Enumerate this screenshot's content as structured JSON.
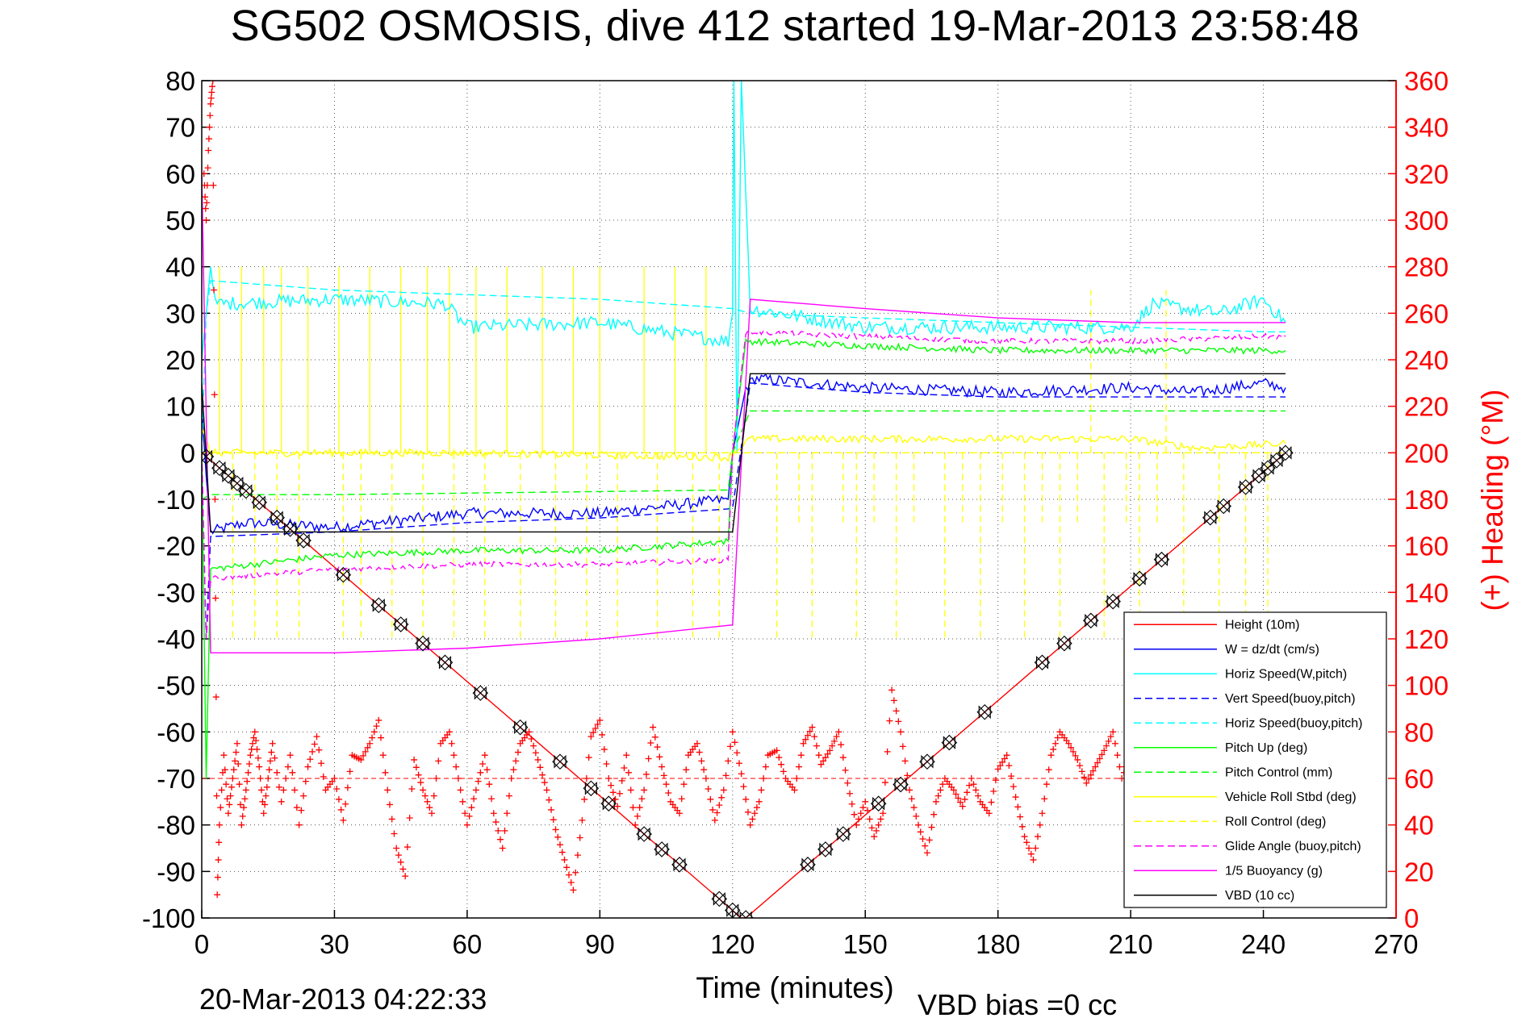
{
  "chart_data": {
    "type": "line",
    "title": "SG502 OSMOSIS, dive 412 started 19-Mar-2013 23:58:48",
    "xlabel": "Time (minutes)",
    "ylabel_right": "(+) Heading (°M)",
    "footer_left": "20-Mar-2013 04:22:33",
    "footer_center": "VBD bias =0 cc",
    "xlim": [
      0,
      270
    ],
    "ylim": [
      -100,
      80
    ],
    "ylim_right": [
      0,
      360
    ],
    "x_ticks": [
      "0",
      "30",
      "60",
      "90",
      "120",
      "150",
      "180",
      "210",
      "240",
      "270"
    ],
    "y_ticks": [
      "80",
      "70",
      "60",
      "50",
      "40",
      "30",
      "20",
      "10",
      "0",
      "-10",
      "-20",
      "-30",
      "-40",
      "-50",
      "-60",
      "-70",
      "-80",
      "-90",
      "-100"
    ],
    "y2_ticks": [
      "360",
      "340",
      "320",
      "300",
      "280",
      "260",
      "240",
      "220",
      "200",
      "180",
      "160",
      "140",
      "120",
      "100",
      "80",
      "60",
      "40",
      "20",
      "0"
    ],
    "grid": true,
    "legend_position": "bottom-right",
    "legend": [
      {
        "label": "Height (10m)",
        "color": "#ff0000",
        "style": "solid"
      },
      {
        "label": "W = dz/dt (cm/s)",
        "color": "#0000ff",
        "style": "solid"
      },
      {
        "label": "Horiz Speed(W,pitch)",
        "color": "#00ffff",
        "style": "solid"
      },
      {
        "label": "Vert Speed(buoy,pitch)",
        "color": "#0000ff",
        "style": "dashed"
      },
      {
        "label": "Horiz Speed(buoy,pitch)",
        "color": "#00ffff",
        "style": "dashed"
      },
      {
        "label": "Pitch Up (deg)",
        "color": "#00ff00",
        "style": "solid"
      },
      {
        "label": "Pitch Control (mm)",
        "color": "#00ff00",
        "style": "dashed"
      },
      {
        "label": "Vehicle Roll Stbd (deg)",
        "color": "#ffff00",
        "style": "solid"
      },
      {
        "label": "Roll Control (deg)",
        "color": "#ffff00",
        "style": "dashed"
      },
      {
        "label": "Glide Angle (buoy,pitch)",
        "color": "#ff00ff",
        "style": "dashed"
      },
      {
        "label": "1/5 Buoyancy (g)",
        "color": "#ff00ff",
        "style": "solid"
      },
      {
        "label": "VBD (10 cc)",
        "color": "#000000",
        "style": "solid"
      }
    ],
    "series": [
      {
        "name": "Height (10m)",
        "color": "#ff0000",
        "style": "solid",
        "x": [
          0,
          122,
          123,
          245
        ],
        "y": [
          0,
          -100,
          -100,
          0
        ]
      },
      {
        "name": "W = dz/dt (cm/s)",
        "color": "#0000ff",
        "style": "solid",
        "noise": 1.2,
        "x": [
          0,
          1,
          2,
          10,
          30,
          60,
          90,
          119,
          120,
          123,
          125,
          150,
          180,
          210,
          225,
          240,
          245
        ],
        "y": [
          10,
          -5,
          -17,
          -15,
          -16,
          -13,
          -13,
          -10,
          0,
          14,
          16,
          14,
          13,
          14,
          13,
          15,
          14
        ]
      },
      {
        "name": "Horiz Speed(W,pitch)",
        "color": "#00ffff",
        "style": "solid",
        "noise": 1.5,
        "x": [
          0,
          2,
          3,
          30,
          55,
          60,
          90,
          119,
          120,
          120.3,
          121,
          122,
          124,
          150,
          180,
          210,
          215,
          230,
          240,
          245
        ],
        "y": [
          20,
          40,
          32,
          33,
          32,
          27,
          28,
          24,
          30,
          80,
          0,
          80,
          31,
          27,
          27,
          27,
          32,
          30,
          33,
          28
        ]
      },
      {
        "name": "Vert Speed(buoy,pitch)",
        "color": "#0000ff",
        "style": "dashed",
        "x": [
          0,
          1,
          2,
          30,
          60,
          90,
          120,
          124,
          150,
          180,
          210,
          240,
          245
        ],
        "y": [
          0,
          -40,
          -18,
          -17,
          -15,
          -14,
          -12,
          15,
          13,
          12,
          12,
          12,
          12
        ]
      },
      {
        "name": "Horiz Speed(buoy,pitch)",
        "color": "#00ffff",
        "style": "dashed",
        "x": [
          0,
          1,
          2,
          30,
          60,
          90,
          120,
          124,
          150,
          180,
          210,
          240,
          245
        ],
        "y": [
          0,
          30,
          37,
          35,
          34,
          33,
          31,
          30,
          29,
          28,
          27,
          26,
          26
        ]
      },
      {
        "name": "Pitch Up (deg)",
        "color": "#00ff00",
        "style": "solid",
        "noise": 0.7,
        "x": [
          0,
          1,
          2,
          30,
          60,
          90,
          119,
          120,
          123,
          150,
          180,
          210,
          240,
          245
        ],
        "y": [
          0,
          -70,
          -25,
          -22,
          -21,
          -21,
          -19,
          0,
          24,
          23,
          22,
          22,
          22,
          22
        ]
      },
      {
        "name": "Pitch Control (mm)",
        "color": "#00ff00",
        "style": "dashed",
        "x": [
          0,
          2,
          30,
          119,
          120,
          124,
          210,
          245
        ],
        "y": [
          -10,
          -9,
          -9,
          -8,
          0,
          9,
          9,
          9
        ]
      },
      {
        "name": "Vehicle Roll Stbd (deg)",
        "color": "#ffff00",
        "style": "solid",
        "noise": 0.8,
        "x": [
          0,
          2,
          60,
          119,
          124,
          210,
          225,
          245
        ],
        "y": [
          5,
          0,
          0,
          -1,
          3,
          3,
          1,
          2
        ]
      },
      {
        "name": "Roll Control (deg)",
        "color": "#ffff00",
        "style": "dashed",
        "x": [
          0,
          245
        ],
        "y": [
          0,
          0
        ]
      },
      {
        "name": "Glide Angle (buoy,pitch)",
        "color": "#ff00ff",
        "style": "dashed",
        "noise": 0.6,
        "x": [
          0,
          1,
          2,
          30,
          60,
          90,
          119,
          120,
          123,
          150,
          180,
          210,
          240,
          245
        ],
        "y": [
          0,
          -40,
          -27,
          -25,
          -24,
          -24,
          -23,
          0,
          26,
          25,
          24,
          24,
          25,
          25
        ]
      },
      {
        "name": "1/5 Buoyancy (g)",
        "color": "#ff00ff",
        "style": "solid",
        "x": [
          0,
          2,
          30,
          60,
          90,
          120,
          124,
          150,
          180,
          210,
          245
        ],
        "y": [
          60,
          -43,
          -43,
          -42,
          -40,
          -37,
          33,
          31,
          29,
          28,
          28
        ]
      },
      {
        "name": "VBD (10 cc)",
        "color": "#000000",
        "style": "solid",
        "x": [
          0,
          2,
          120,
          124,
          245
        ],
        "y": [
          15,
          -17,
          -17,
          17,
          17
        ]
      }
    ],
    "roll_spikes": [
      {
        "x": [
          4,
          9,
          14,
          18,
          24,
          31,
          38,
          45,
          51,
          56,
          62,
          69,
          77,
          84,
          90,
          100,
          107,
          114
        ],
        "y": 40,
        "style": "solid"
      },
      {
        "x": [
          7,
          12,
          17,
          22,
          32,
          36,
          43,
          50,
          57,
          64,
          72,
          80,
          87,
          94,
          103,
          111,
          117
        ],
        "y": -40,
        "style": "dashed"
      },
      {
        "x": [
          130,
          138,
          148,
          157,
          168,
          176,
          186,
          194,
          204,
          212,
          222,
          230,
          236,
          241
        ],
        "y": -40,
        "style": "dashed"
      },
      {
        "x": [
          135,
          145,
          152,
          161,
          172,
          181,
          190,
          198,
          209,
          216
        ],
        "y": -15,
        "style": "dashed"
      },
      {
        "x": [
          201,
          218
        ],
        "y": 35,
        "style": "dashed"
      }
    ],
    "depth_markers": {
      "color": "#000000",
      "x": [
        1,
        4,
        6,
        8,
        10,
        13,
        17,
        20,
        23,
        32,
        40,
        45,
        50,
        55,
        63,
        72,
        81,
        88,
        92,
        100,
        104,
        108,
        117,
        120,
        123,
        137,
        141,
        145,
        153,
        158,
        164,
        169,
        177,
        190,
        195,
        201,
        206,
        212,
        217,
        228,
        231,
        236,
        239,
        241,
        243,
        245
      ]
    },
    "heading": {
      "name": "(+) Heading",
      "axis": "right",
      "color": "#ff0000",
      "marker": "+",
      "reference": 60,
      "x": [
        0.5,
        1,
        1.5,
        2,
        2.5,
        3,
        3.5,
        4,
        5,
        6,
        7,
        8,
        9,
        10,
        11,
        12,
        13,
        14,
        15,
        16,
        18,
        20,
        22,
        24,
        26,
        28,
        30,
        32,
        34,
        36,
        38,
        40,
        42,
        44,
        46,
        48,
        50,
        52,
        54,
        56,
        58,
        60,
        62,
        64,
        66,
        68,
        70,
        72,
        74,
        76,
        78,
        80,
        82,
        84,
        86,
        88,
        90,
        92,
        94,
        96,
        98,
        100,
        102,
        104,
        106,
        108,
        110,
        112,
        114,
        116,
        118,
        120,
        122,
        124,
        126,
        128,
        130,
        132,
        134,
        136,
        138,
        140,
        142,
        144,
        146,
        148,
        150,
        152,
        154,
        156,
        158,
        160,
        162,
        164,
        166,
        168,
        170,
        172,
        174,
        176,
        178,
        180,
        182,
        184,
        186,
        188,
        190,
        192,
        194,
        196,
        198,
        200,
        202,
        204,
        206,
        208,
        210,
        212
      ],
      "y": [
        320,
        300,
        330,
        350,
        360,
        180,
        10,
        40,
        70,
        45,
        60,
        75,
        40,
        55,
        70,
        80,
        65,
        45,
        60,
        75,
        50,
        70,
        40,
        65,
        78,
        55,
        60,
        42,
        70,
        68,
        75,
        85,
        55,
        30,
        18,
        68,
        55,
        45,
        75,
        80,
        60,
        40,
        55,
        70,
        45,
        30,
        60,
        75,
        80,
        68,
        55,
        38,
        25,
        12,
        42,
        78,
        85,
        60,
        48,
        70,
        40,
        55,
        82,
        65,
        50,
        45,
        70,
        75,
        60,
        42,
        55,
        80,
        62,
        40,
        50,
        70,
        72,
        60,
        55,
        75,
        82,
        66,
        72,
        80,
        58,
        40,
        50,
        35,
        45,
        98,
        80,
        55,
        40,
        28,
        50,
        60,
        55,
        48,
        60,
        50,
        45,
        64,
        70,
        52,
        35,
        25,
        45,
        70,
        80,
        75,
        68,
        58,
        65,
        72,
        80,
        60,
        70,
        75
      ]
    }
  }
}
